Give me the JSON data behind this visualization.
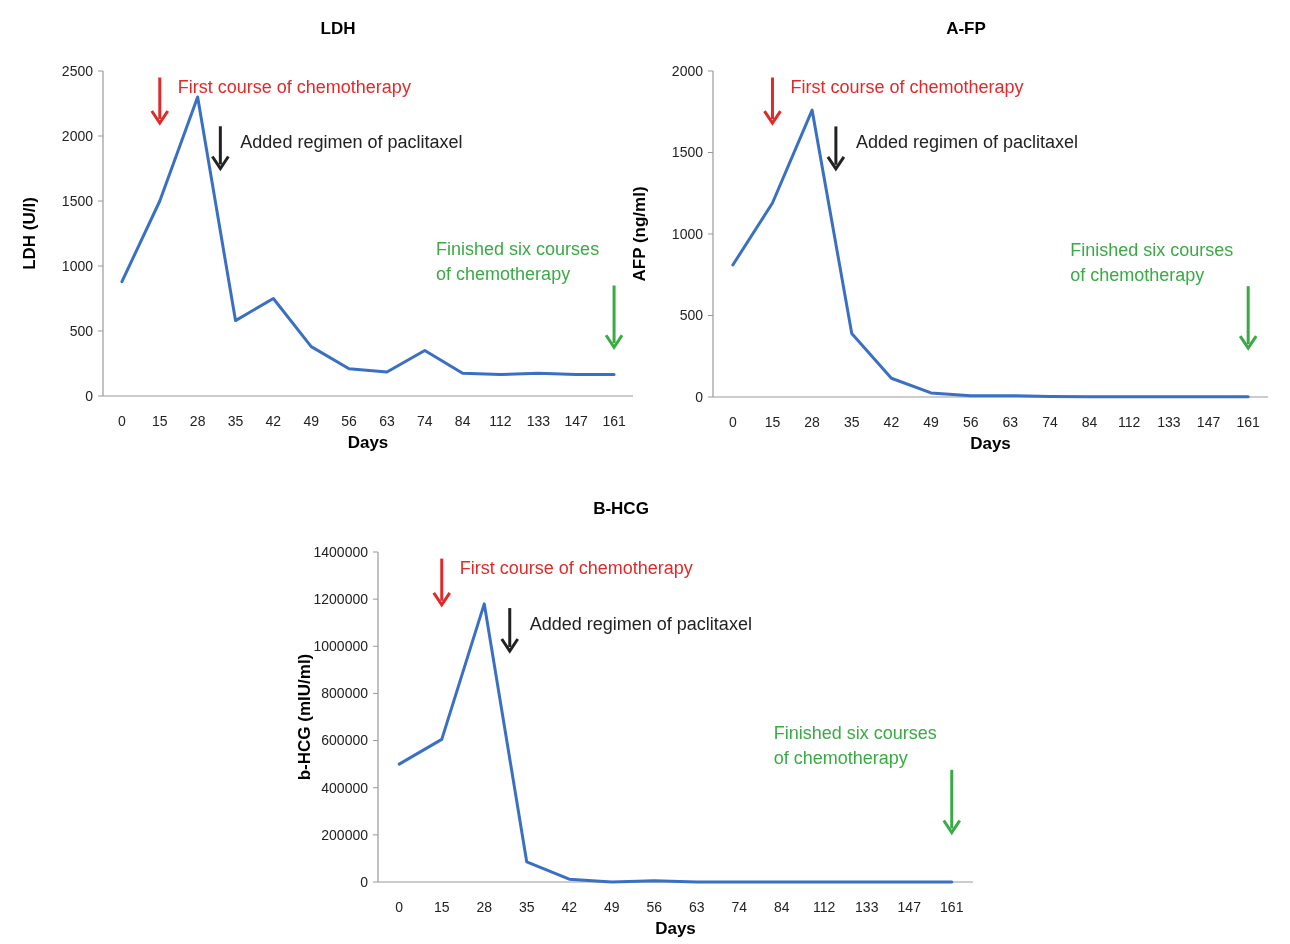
{
  "chart_data": [
    {
      "type": "line",
      "title": "LDH",
      "xlabel": "Days",
      "ylabel": "LDH (U/l)",
      "categories": [
        "0",
        "15",
        "28",
        "35",
        "42",
        "49",
        "56",
        "63",
        "74",
        "84",
        "112",
        "133",
        "147",
        "161"
      ],
      "series": [
        {
          "color": "#3a70c4",
          "values": [
            880,
            1500,
            2300,
            580,
            750,
            380,
            210,
            185,
            350,
            175,
            165,
            175,
            165,
            165
          ]
        }
      ],
      "ylim": [
        0,
        2500
      ],
      "yticks": [
        0,
        500,
        1000,
        1500,
        2000,
        2500
      ],
      "grid": false,
      "marker": "none",
      "line_style": "solid",
      "annotations": [
        "First course of chemotherapy",
        "Added regimen of paclitaxel",
        "Finished six courses of chemotherapy"
      ]
    },
    {
      "type": "line",
      "title": "A-FP",
      "xlabel": "Days",
      "ylabel": "AFP (ng/ml)",
      "categories": [
        "0",
        "15",
        "28",
        "35",
        "42",
        "49",
        "56",
        "63",
        "74",
        "84",
        "112",
        "133",
        "147",
        "161"
      ],
      "series": [
        {
          "color": "#3a70c4",
          "values": [
            810,
            1190,
            1760,
            390,
            115,
            25,
            8,
            8,
            3,
            2,
            1,
            1,
            1,
            1
          ]
        }
      ],
      "ylim": [
        0,
        2000
      ],
      "yticks": [
        0,
        500,
        1000,
        1500,
        2000
      ],
      "grid": false,
      "marker": "none",
      "line_style": "solid",
      "annotations": [
        "First course of chemotherapy",
        "Added regimen of paclitaxel",
        "Finished six courses of chemotherapy"
      ]
    },
    {
      "type": "line",
      "title": "B-HCG",
      "xlabel": "Days",
      "ylabel": "b-HCG (mIU/ml)",
      "categories": [
        "0",
        "15",
        "28",
        "35",
        "42",
        "49",
        "56",
        "63",
        "74",
        "84",
        "112",
        "133",
        "147",
        "161"
      ],
      "series": [
        {
          "color": "#3a70c4",
          "values": [
            500000,
            605000,
            1180000,
            85000,
            12000,
            0,
            5000,
            0,
            0,
            0,
            0,
            0,
            0,
            0
          ]
        }
      ],
      "ylim": [
        0,
        1400000
      ],
      "yticks": [
        0,
        200000,
        400000,
        600000,
        800000,
        1000000,
        1200000,
        1400000
      ],
      "grid": false,
      "marker": "none",
      "line_style": "solid",
      "annotations": [
        "First course of chemotherapy",
        "Added regimen of paclitaxel",
        "Finished six courses of chemotherapy"
      ]
    }
  ]
}
